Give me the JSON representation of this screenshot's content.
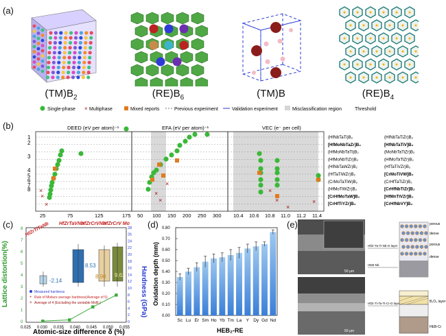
{
  "panel_a": {
    "label": "(a)",
    "structures": [
      {
        "name_main": "(TM)B",
        "name_sub": "2"
      },
      {
        "name_main": "(RE)B",
        "name_sub": "6"
      },
      {
        "name_main": "(TM)B",
        "name_sub": ""
      },
      {
        "name_main": "(RE)B",
        "name_sub": "4"
      }
    ]
  },
  "panel_b": {
    "label": "(b)",
    "legend": {
      "single": "Single-phase",
      "multi": "Multiphase",
      "mixed": "Mixed reports",
      "prev": "Previous experiment",
      "valid": "Validation experiment",
      "misc": "Misclassification region",
      "thresh": "Threshold"
    },
    "titles": {
      "deed": "DEED (eV per atom)⁻¹",
      "efa": "EFA (eV per atom)⁻¹",
      "vec": "VEC (e⁻ per cell)"
    },
    "deed_ticks": [
      "25",
      "75",
      "125",
      "175"
    ],
    "efa_ticks": [
      "50",
      "100",
      "150",
      "200",
      "250",
      "300"
    ],
    "vec_ticks": [
      "10.4",
      "10.6",
      "10.8",
      "11.0",
      "11.2",
      "11.4"
    ],
    "rank_ticks": [
      "1",
      "2",
      "3",
      "4",
      "5",
      "6",
      "7",
      "8"
    ],
    "left_names": [
      "(HfNbTaTi)B₂",
      "[HfMoNbTaZr]B₂",
      "(HfMoNbTaTi)B₂",
      "(HfMoNbTiZr)B₂",
      "(HfNbTaWZr)B₂",
      "(HfTaTiWZr)B₂",
      "(CrMoTaTiW)B₂",
      "(HfMoTiWZr)B₂",
      "[CrHfMoTaW]B₂",
      "[CrHfTiYZr]B₂"
    ],
    "right_names": [
      "(HfNbTaTiZr)B₂",
      "[HfNbTaTiV]B₂",
      "(MoNbTaTiZr)B₂",
      "(HfMoTaTiZr)B₂",
      "(HfTaTiVZr)B₂",
      "[CrMoTiVW]B₂",
      "(CrHfTaTiZr)B₂",
      "[CrHfNbTiZr]B₂",
      "[HfMnTiVZr]B₂",
      "[CrHfNbVY]B₂"
    ]
  },
  "panel_c": {
    "label": "(c)",
    "ylabel_left": "Lattice distortion(%)",
    "ylabel_right": "Hardness (GPa)",
    "xlabel": "Atomic-size difference δ (%)",
    "x_ticks": [
      "0.025",
      "0.030",
      "0.035",
      "0.040",
      "0.045",
      "0.050",
      "0.055"
    ],
    "y_left_ticks": [
      "0",
      "1",
      "2",
      "3",
      "4",
      "5",
      "6",
      "7",
      "8"
    ],
    "y_right_ticks": [
      "0",
      "2",
      "4",
      "6",
      "8",
      "10",
      "12",
      "14",
      "16",
      "18",
      "20",
      "22",
      "24",
      "26",
      "28"
    ],
    "compositions": [
      "HfZrTiTaNb",
      "HfZrTaVNb",
      "HfZrCrVNb",
      "HfZrCrV Mo"
    ],
    "values": [
      "-2.14",
      "8.53",
      "8.90",
      "9.62"
    ],
    "legend": {
      "measured": "Measured hardness",
      "rom": "Rule of Mixture average hardness(Average of 5)",
      "avg4": "Average of 4 (Excluding the unstable MoB₂)"
    }
  },
  "panel_d": {
    "label": "(d)",
    "ylabel": "Oxidation depth (mm)",
    "xlabel": "HEB₂-RE",
    "y_ticks": [
      "0.00",
      "0.10",
      "0.20",
      "0.30",
      "0.40",
      "0.50",
      "0.60",
      "0.70",
      "0.80"
    ]
  },
  "panel_e": {
    "label": "(e)",
    "layer1": "HfZr-Ta-Ti-Nb-O layer",
    "base1": "HEB-Nb",
    "layer2": "HfZr-Ti-Ta-Ti-Cr-O layer",
    "base2": "HEB-Cr",
    "scale": "50 μm",
    "porous": "porous",
    "dense": "dense",
    "b2o3": "B₂O₃ layer"
  },
  "chart_data": [
    {
      "type": "bar",
      "title": "",
      "xlabel": "HEB₂-RE",
      "ylabel": "Oxidation depth (mm)",
      "ylim": [
        0,
        0.8
      ],
      "categories": [
        "Sc",
        "Lu",
        "Er",
        "Sm",
        "Ho",
        "Yb",
        "Tm",
        "La",
        "Y",
        "Dy",
        "Gd",
        "Nd"
      ],
      "values": [
        0.35,
        0.4,
        0.44,
        0.49,
        0.52,
        0.53,
        0.55,
        0.57,
        0.61,
        0.63,
        0.65,
        0.76
      ],
      "errors": [
        0.03,
        0.03,
        0.04,
        0.05,
        0.04,
        0.04,
        0.05,
        0.05,
        0.04,
        0.04,
        0.02,
        0.02
      ],
      "colors": {
        "top": "#9ec8ef",
        "bottom": "#3a7fd8"
      }
    },
    {
      "type": "line",
      "title": "",
      "xlabel": "Atomic-size difference δ (%)",
      "ylabel": "Lattice distortion(%)",
      "xlim": [
        0.025,
        0.055
      ],
      "ylim": [
        0,
        8
      ],
      "x": [
        0.03,
        0.038,
        0.045,
        0.052
      ],
      "y": [
        0.1,
        0.2,
        1.3,
        2.3
      ],
      "color": "#3aa83a"
    }
  ]
}
